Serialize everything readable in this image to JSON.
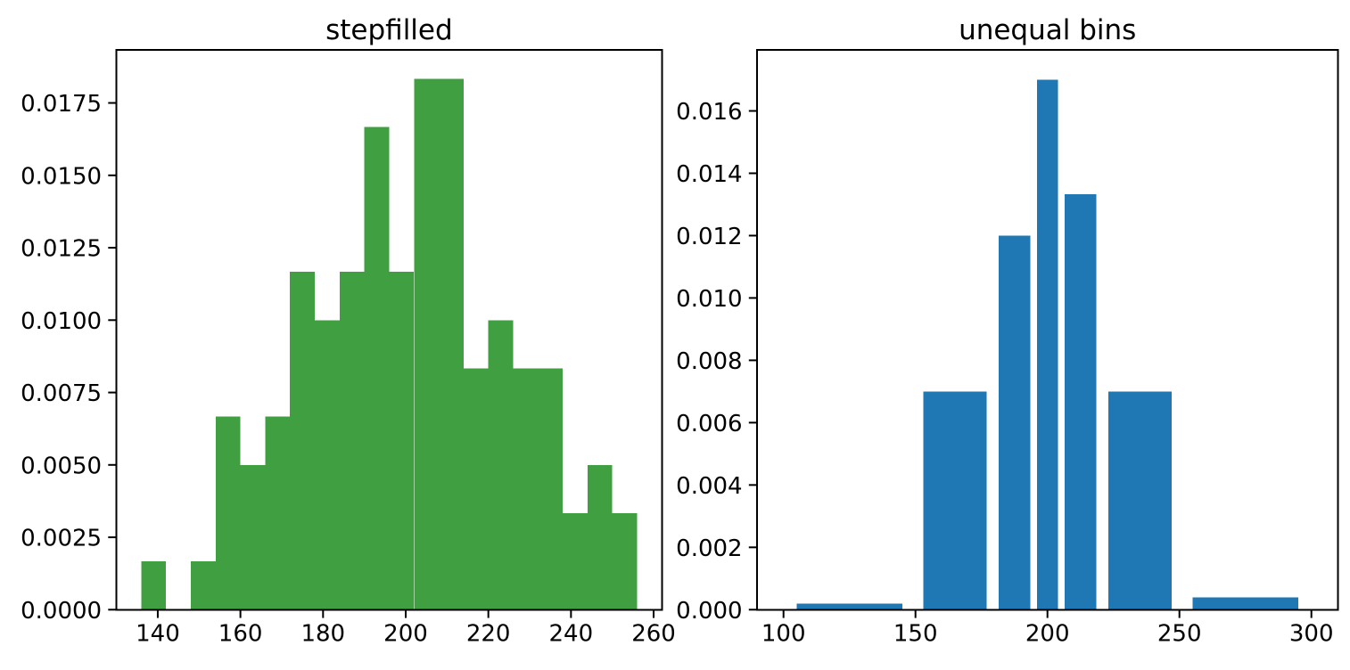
{
  "figure": {
    "background": "#ffffff"
  },
  "chart_data": [
    {
      "type": "bar",
      "subtype": "histogram-stepfilled",
      "title": "stepfilled",
      "color": "#409f40",
      "bin_edges": [
        136,
        142,
        148,
        154,
        160,
        166,
        172,
        178,
        184,
        190,
        196,
        202,
        208,
        214,
        220,
        226,
        232,
        238,
        244,
        250,
        256
      ],
      "counts": [
        1,
        0,
        1,
        4,
        3,
        4,
        7,
        6,
        7,
        10,
        7,
        11,
        11,
        5,
        6,
        5,
        5,
        2,
        3,
        2
      ],
      "values": [
        0.00166667,
        0,
        0.00166667,
        0.00666667,
        0.005,
        0.00666667,
        0.01166667,
        0.01,
        0.01166667,
        0.01666667,
        0.01166667,
        0.01833333,
        0.01833333,
        0.00833333,
        0.01,
        0.00833333,
        0.00833333,
        0.00333333,
        0.005,
        0.00333333
      ],
      "bar_rwidth": 1,
      "xlabel": "",
      "ylabel": "",
      "xlim": [
        130,
        262
      ],
      "ylim": [
        0,
        0.019332
      ],
      "xticks": [
        140,
        160,
        180,
        200,
        220,
        240,
        260
      ],
      "xtick_labels": [
        "140",
        "160",
        "180",
        "200",
        "220",
        "240",
        "260"
      ],
      "yticks": [
        0,
        0.0025,
        0.005,
        0.0075,
        0.01,
        0.0125,
        0.015,
        0.0175
      ],
      "ytick_labels": [
        "0.0000",
        "0.0025",
        "0.0050",
        "0.0075",
        "0.0100",
        "0.0125",
        "0.0150",
        "0.0175"
      ],
      "grid": false,
      "legend_position": "none"
    },
    {
      "type": "bar",
      "subtype": "histogram-unequal-bins",
      "title": "unequal bins",
      "color": "#1f77b4",
      "bin_edges": [
        100,
        150,
        180,
        195,
        205,
        220,
        250,
        300
      ],
      "counts": [
        1,
        21,
        18,
        17,
        20,
        21,
        2
      ],
      "values": [
        0.0002,
        0.007,
        0.012,
        0.017,
        0.01333333,
        0.007,
        0.0004
      ],
      "bar_rwidth": 0.8,
      "xlabel": "",
      "ylabel": "",
      "xlim": [
        90,
        310
      ],
      "ylim": [
        0,
        0.017958
      ],
      "xticks": [
        100,
        150,
        200,
        250,
        300
      ],
      "xtick_labels": [
        "100",
        "150",
        "200",
        "250",
        "300"
      ],
      "yticks": [
        0,
        0.002,
        0.004,
        0.006,
        0.008,
        0.01,
        0.012,
        0.014,
        0.016
      ],
      "ytick_labels": [
        "0.000",
        "0.002",
        "0.004",
        "0.006",
        "0.008",
        "0.010",
        "0.012",
        "0.014",
        "0.016"
      ],
      "grid": false,
      "legend_position": "none"
    }
  ]
}
